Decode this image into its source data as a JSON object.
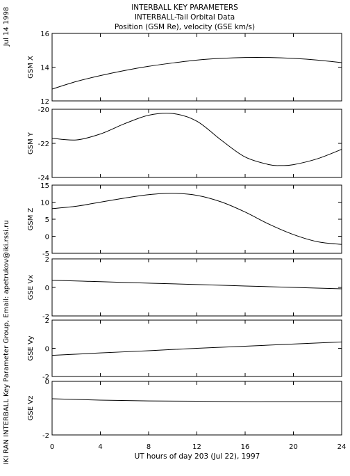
{
  "header": {
    "title": "INTERBALL KEY PARAMETERS",
    "subtitle": "INTERBALL-Tail Orbital Data",
    "subtitle2": "Position (GSM Re), velocity (GSE km/s)"
  },
  "side": {
    "date": "Jul 14 1998",
    "credit": "IKI RAN INTERBALL Key Parameter Group, Email: apetrukov@iki.rssi.ru"
  },
  "xaxis": {
    "label": "UT hours of day 203 (Jul 22), 1997",
    "ticks": [
      "0",
      "4",
      "8",
      "12",
      "16",
      "20",
      "24"
    ]
  },
  "colors": {
    "line": "#000000",
    "background": "#ffffff"
  },
  "chart_data": [
    {
      "type": "line",
      "ylabel": "GSM X",
      "xlim": [
        0,
        24
      ],
      "ylim": [
        12,
        16
      ],
      "yticks": [
        "12",
        "14",
        "16"
      ],
      "x": [
        0,
        2,
        4,
        6,
        8,
        10,
        12,
        14,
        16,
        18,
        20,
        22,
        24
      ],
      "values": [
        12.7,
        13.15,
        13.5,
        13.8,
        14.05,
        14.25,
        14.42,
        14.52,
        14.57,
        14.57,
        14.52,
        14.42,
        14.27
      ]
    },
    {
      "type": "line",
      "ylabel": "GSM Y",
      "xlim": [
        0,
        24
      ],
      "ylim": [
        -24,
        -20
      ],
      "yticks": [
        "-24",
        "-22",
        "-20"
      ],
      "x": [
        0,
        2,
        4,
        6,
        8,
        10,
        12,
        14,
        16,
        18,
        19,
        20,
        22,
        24
      ],
      "values": [
        -21.7,
        -21.8,
        -21.45,
        -20.85,
        -20.35,
        -20.25,
        -20.7,
        -21.8,
        -22.8,
        -23.25,
        -23.3,
        -23.25,
        -22.9,
        -22.35
      ]
    },
    {
      "type": "line",
      "ylabel": "GSM Z",
      "xlim": [
        0,
        24
      ],
      "ylim": [
        -5,
        15
      ],
      "yticks": [
        "-5",
        "0",
        "5",
        "10",
        "15"
      ],
      "x": [
        0,
        2,
        4,
        6,
        8,
        10,
        12,
        14,
        16,
        18,
        20,
        22,
        24
      ],
      "values": [
        8.1,
        8.8,
        10.0,
        11.2,
        12.2,
        12.6,
        12.0,
        10.1,
        7.1,
        3.5,
        0.5,
        -1.6,
        -2.4
      ]
    },
    {
      "type": "line",
      "ylabel": "GSE Vx",
      "xlim": [
        0,
        24
      ],
      "ylim": [
        -2,
        2
      ],
      "yticks": [
        "-2",
        "0",
        "2"
      ],
      "x": [
        0,
        4,
        8,
        12,
        16,
        20,
        24
      ],
      "values": [
        0.5,
        0.4,
        0.3,
        0.2,
        0.1,
        0.0,
        -0.1
      ]
    },
    {
      "type": "line",
      "ylabel": "GSE Vy",
      "xlim": [
        0,
        24
      ],
      "ylim": [
        -2,
        2
      ],
      "yticks": [
        "-2",
        "0",
        "2"
      ],
      "x": [
        0,
        4,
        8,
        12,
        16,
        20,
        24
      ],
      "values": [
        -0.5,
        -0.33,
        -0.17,
        0.0,
        0.15,
        0.3,
        0.45
      ]
    },
    {
      "type": "line",
      "ylabel": "GSE Vz",
      "xlim": [
        0,
        24
      ],
      "ylim": [
        -2,
        0
      ],
      "yticks": [
        "-2",
        "0"
      ],
      "x": [
        0,
        4,
        8,
        12,
        16,
        20,
        24
      ],
      "values": [
        -0.65,
        -0.7,
        -0.73,
        -0.74,
        -0.76,
        -0.76,
        -0.76
      ]
    }
  ]
}
